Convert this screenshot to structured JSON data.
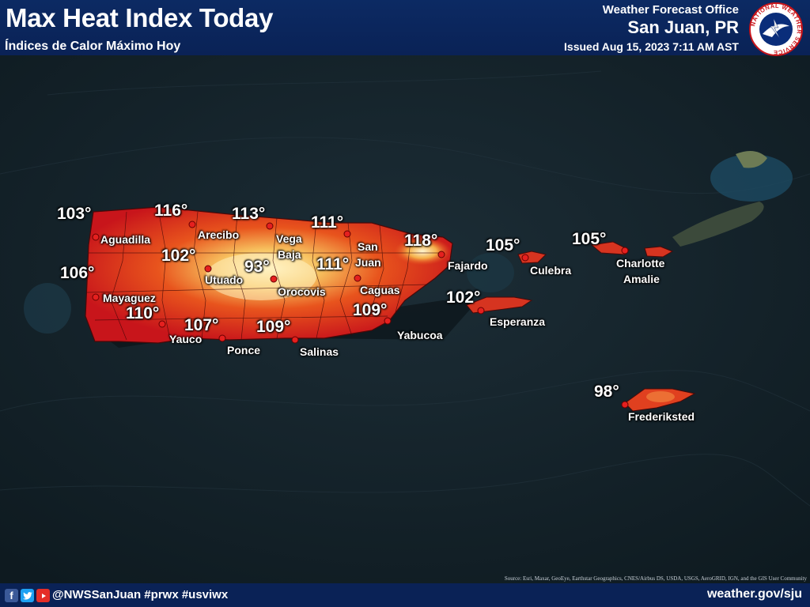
{
  "header": {
    "title": "Max Heat Index Today",
    "subtitle": "Índices de Calor Máximo Hoy",
    "office_label": "Weather Forecast Office",
    "office_name": "San Juan, PR",
    "issued": "Issued Aug 15, 2023 7:11 AM AST",
    "logo_ring_text": "NATIONAL WEATHER SERVICE"
  },
  "map": {
    "heat_values": [
      "103°",
      "116°",
      "113°",
      "111°",
      "102°",
      "93°",
      "111°",
      "118°",
      "106°",
      "110°",
      "107°",
      "109°",
      "109°",
      "105°",
      "105°",
      "102°",
      "98°"
    ],
    "places": [
      "Aguadilla",
      "Arecibo",
      "Vega",
      "Baja",
      "San",
      "Juan",
      "Utuado",
      "Orocovis",
      "Caguas",
      "Mayaguez",
      "Yauco",
      "Ponce",
      "Salinas",
      "Yabucoa",
      "Fajardo",
      "Culebra",
      "Charlotte",
      "Amalie",
      "Esperanza",
      "Frederiksted"
    ],
    "colors": {
      "hot": "#c8151b",
      "hotter": "#e8541d",
      "extreme": "#f7c25f",
      "peak": "#fff4c6",
      "ocean": "#16252d"
    }
  },
  "source_credit": "Source: Esri, Maxar, GeoEye, Earthstar Geographics, CNES/Airbus DS, USDA, USGS, AeroGRID, IGN, and the GIS User Community",
  "footer": {
    "social_icons": [
      "facebook-icon",
      "twitter-icon",
      "youtube-icon"
    ],
    "handle": "@NWSSanJuan #prwx #usviwx",
    "website": "weather.gov/sju"
  }
}
